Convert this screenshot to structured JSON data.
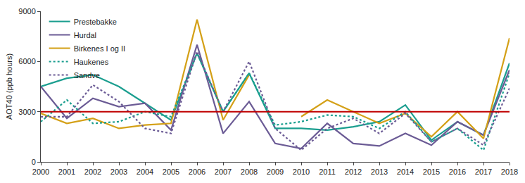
{
  "chart_data": {
    "type": "line",
    "y_label": "AOT40 (ppb hours)",
    "x": [
      2000,
      2001,
      2002,
      2003,
      2004,
      2005,
      2006,
      2007,
      2008,
      2009,
      2010,
      2011,
      2012,
      2013,
      2014,
      2015,
      2016,
      2017,
      2018
    ],
    "series": [
      {
        "name": "Prestebakke",
        "color": "#1a9e8f",
        "line_style": "solid",
        "values": [
          4500,
          5000,
          5200,
          4500,
          3500,
          2500,
          6500,
          3000,
          5300,
          2000,
          2000,
          1900,
          2100,
          2400,
          3400,
          1300,
          2400,
          1600,
          5900
        ]
      },
      {
        "name": "Hurdal",
        "color": "#6b5b95",
        "line_style": "solid",
        "values": [
          4500,
          2600,
          3800,
          3300,
          3500,
          1900,
          7000,
          1700,
          3600,
          1100,
          800,
          2300,
          1100,
          950,
          1700,
          1000,
          2400,
          1600,
          5500
        ]
      },
      {
        "name": "Birkenes I og II",
        "color": "#d4a017",
        "line_style": "solid",
        "values": [
          2900,
          2300,
          2600,
          2000,
          2200,
          2300,
          8500,
          2500,
          5200,
          null,
          2700,
          3700,
          3000,
          2300,
          2900,
          1500,
          3000,
          1400,
          7400
        ]
      },
      {
        "name": "Haukenes",
        "color": "#1a9e8f",
        "line_style": "dot",
        "values": [
          2400,
          3700,
          2300,
          2400,
          3000,
          2700,
          6500,
          3000,
          5300,
          2200,
          2400,
          2800,
          2700,
          2000,
          3000,
          1200,
          2000,
          700,
          5300
        ]
      },
      {
        "name": "Sandve",
        "color": "#6b5b95",
        "line_style": "dot",
        "values": [
          2700,
          2700,
          4600,
          3600,
          2000,
          1700,
          6600,
          3000,
          6000,
          2000,
          700,
          2000,
          2600,
          1700,
          2900,
          1200,
          2000,
          1000,
          4400
        ]
      }
    ],
    "reference_line": {
      "value": 3000,
      "color": "#c00000"
    },
    "xlim": [
      2000,
      2018
    ],
    "xticks": [
      2000,
      2001,
      2002,
      2003,
      2004,
      2005,
      2006,
      2007,
      2008,
      2009,
      2010,
      2011,
      2012,
      2013,
      2014,
      2015,
      2016,
      2017,
      2018
    ],
    "ylim": [
      0,
      9000
    ],
    "yticks": [
      0,
      3000,
      6000,
      9000
    ],
    "grid": false,
    "legend": "top-left"
  }
}
